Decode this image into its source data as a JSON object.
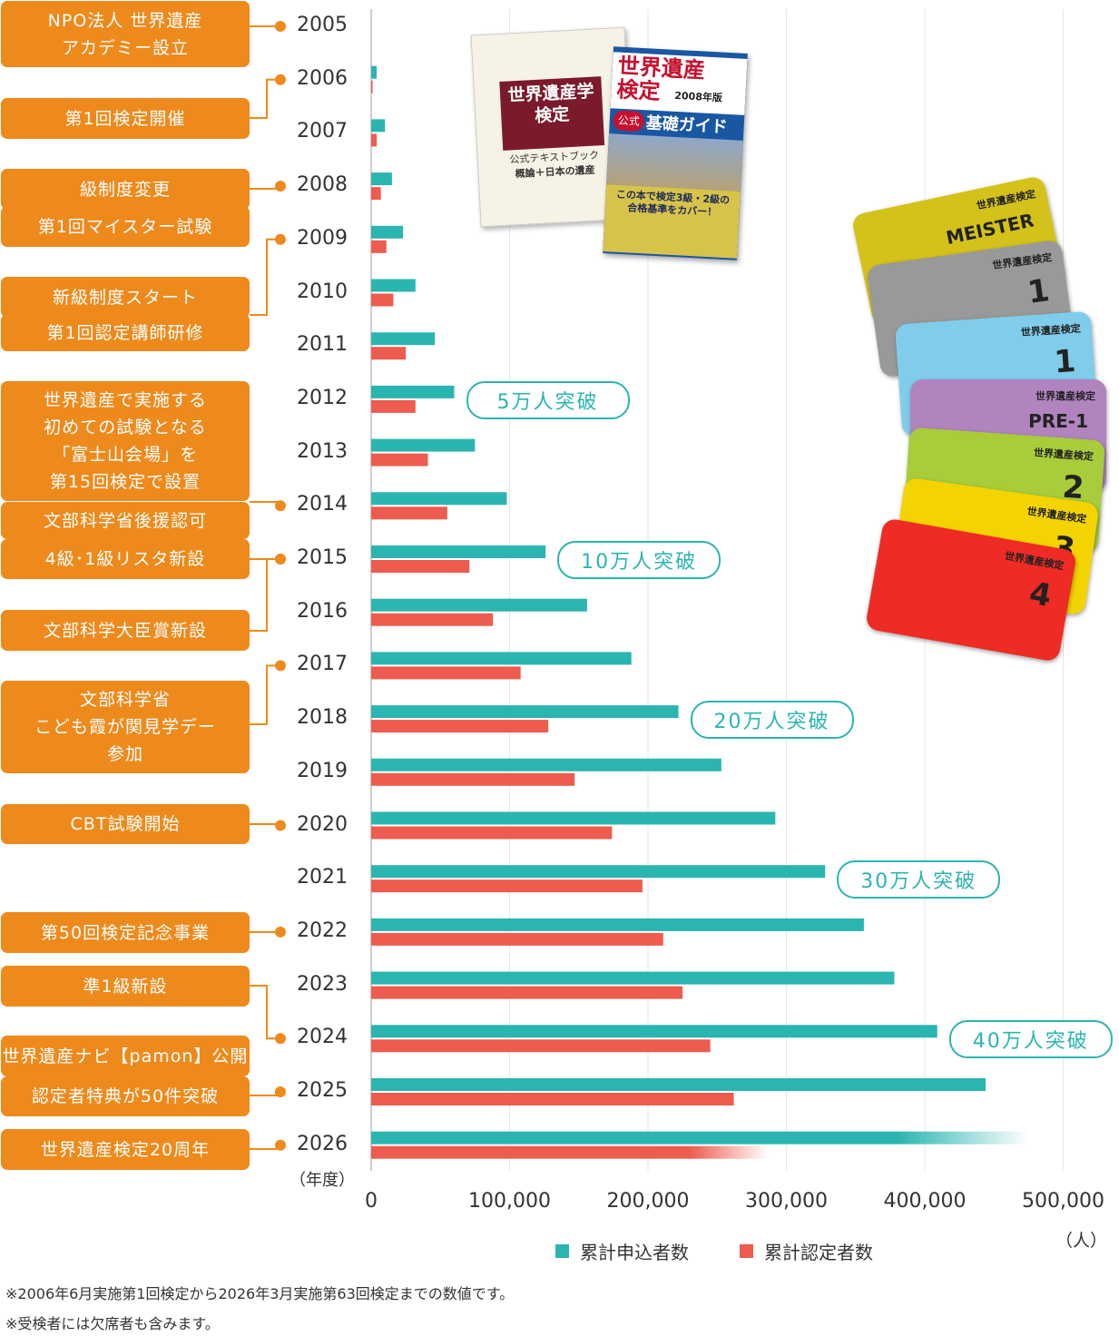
{
  "chart_data": {
    "type": "bar",
    "orientation": "horizontal",
    "categories": [
      "2005",
      "2006",
      "2007",
      "2008",
      "2009",
      "2010",
      "2011",
      "2012",
      "2013",
      "2014",
      "2015",
      "2016",
      "2017",
      "2018",
      "2019",
      "2020",
      "2021",
      "2022",
      "2023",
      "2024",
      "2025",
      "2026"
    ],
    "series": [
      {
        "name": "累計申込者数",
        "color": "#2bb5b1",
        "values": [
          0,
          4000,
          10000,
          15000,
          23000,
          32000,
          46000,
          60000,
          75000,
          98000,
          126000,
          156000,
          188000,
          222000,
          253000,
          292000,
          328000,
          356000,
          378000,
          409000,
          444000,
          475000
        ]
      },
      {
        "name": "累計認定者数",
        "color": "#ee5b4f",
        "values": [
          0,
          1000,
          4000,
          7000,
          11000,
          16000,
          25000,
          32000,
          41000,
          55000,
          71000,
          88000,
          108000,
          128000,
          147000,
          174000,
          196000,
          211000,
          225000,
          245000,
          262000,
          287000
        ]
      }
    ],
    "xlim": [
      0,
      500000
    ],
    "x_ticks": [
      "0",
      "100,000",
      "200,000",
      "300,000",
      "400,000",
      "500,000"
    ],
    "x_unit": "（人）",
    "y_unit": "（年度）",
    "grid": true,
    "legend_position": "bottom"
  },
  "milestones": [
    {
      "label": "5万人突破",
      "year": "2012",
      "x": 60000
    },
    {
      "label": "10万人突破",
      "year": "2015",
      "x": 126000
    },
    {
      "label": "20万人突破",
      "year": "2018",
      "x": 222000
    },
    {
      "label": "30万人突破",
      "year": "2021",
      "x": 328000
    },
    {
      "label": "40万人突破",
      "year": "2024",
      "x": 409000
    }
  ],
  "events": [
    "NPO法人 世界遺産\nアカデミー設立",
    "第1回検定開催",
    "級制度変更",
    "第1回マイスター試験",
    "新級制度スタート",
    "第1回認定講師研修",
    "世界遺産で実施する\n初めての試験となる\n「富士山会場」を\n第15回検定で設置",
    "文部科学省後援認可",
    "4級･1級リスタ新設",
    "文部科学大臣賞新設",
    "文部科学省\nこども霞が関見学デー\n参加",
    "CBT試験開始",
    "第50回検定記念事業",
    "準1級新設",
    "世界遺産ナビ【pamon】公開",
    "認定者特典が50件突破",
    "世界遺産検定20周年"
  ],
  "books": {
    "book1_title": "世界遺産学\n検定",
    "book1_subtitle": "公式テキストブック",
    "book1_caption": "概論＋日本の遺産",
    "book2_title": "世界遺産\n検定",
    "book2_edition": "2008年版",
    "book2_subtitle": "基礎ガイド",
    "book2_tag": "公式",
    "book2_band": "この本で検定3級・2級の\n合格基準をカバー！"
  },
  "cards": [
    {
      "level": "MEISTER",
      "color": "#d4c21a"
    },
    {
      "level": "1",
      "color": "#999999"
    },
    {
      "level": "1",
      "color": "#7fcdeb"
    },
    {
      "level": "PRE-1",
      "color": "#b184c0"
    },
    {
      "level": "2",
      "color": "#a8cc3a"
    },
    {
      "level": "3",
      "color": "#f4d400"
    },
    {
      "level": "4",
      "color": "#ee2b24"
    }
  ],
  "card_brand": "世界遺産検定",
  "notes": [
    "※2006年6月実施第1回検定から2026年3月実施第63回検定までの数値です。",
    "※受検者には欠席者も含みます。"
  ]
}
